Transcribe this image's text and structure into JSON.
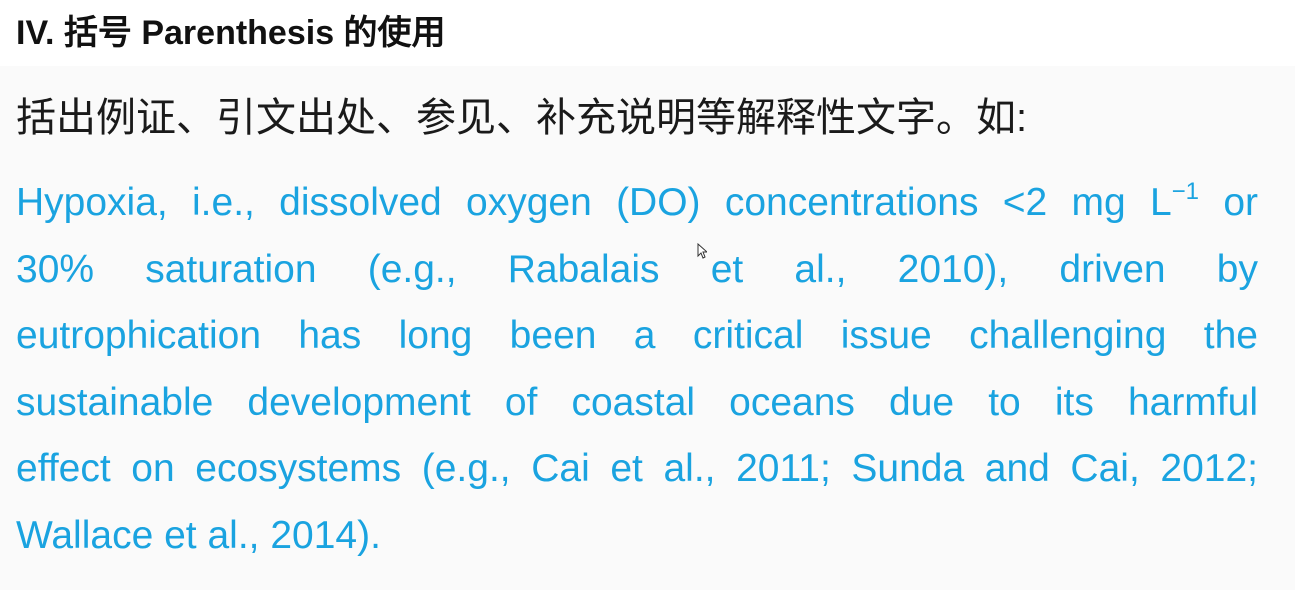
{
  "slide": {
    "title": "IV. 括号 Parenthesis 的使用",
    "intro": "括出例证、引文出处、参见、补充说明等解释性文字。如:",
    "example": {
      "lines": [
        {
          "before_sup": "Hypoxia, i.e., dissolved oxygen (DO) concentrations <2 mg L",
          "sup": "−1",
          "after_sup": " or"
        },
        {
          "text": "30% saturation (e.g., Rabalais et al., 2010), driven by"
        },
        {
          "text": "eutrophication has long been a critical issue challenging the"
        },
        {
          "text": "sustainable development of coastal oceans due to its harmful"
        },
        {
          "text": "effect on ecosystems (e.g., Cai et al., 2011; Sunda and Cai, 2012;"
        },
        {
          "text": "Wallace et al., 2014)."
        }
      ]
    }
  },
  "colors": {
    "example_text": "#1aa3e0",
    "title_text": "#111111",
    "background": "#fafafa"
  },
  "icons": {
    "cursor": "mouse-pointer-icon"
  }
}
